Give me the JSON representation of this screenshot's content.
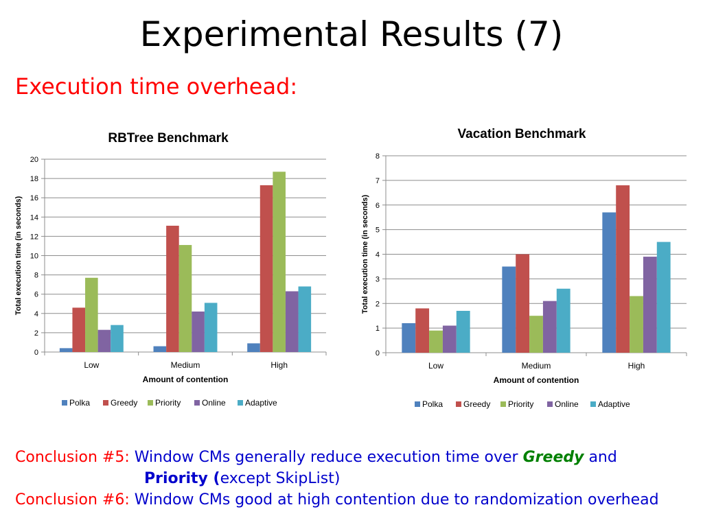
{
  "slide": {
    "title": "Experimental Results (7)",
    "subtitle": "Execution time overhead:"
  },
  "conclusions": {
    "c5_label": "Conclusion #5:",
    "c5_text_a": "Window CMs generally reduce execution time over",
    "c5_greedy": "Greedy",
    "c5_text_b": "and",
    "c5_priority": "Priority (",
    "c5_text_c": "except SkipList)",
    "c6_label": "Conclusion #6:",
    "c6_text": "Window CMs good at high contention due to randomization overhead"
  },
  "colors": {
    "Polka": "#4f81bd",
    "Greedy": "#c0504d",
    "Priority": "#9bbb59",
    "Online": "#8064a2",
    "Adaptive": "#4bacc6",
    "red_text": "#ff0000",
    "blue_text": "#0000cc",
    "green_text": "#008000"
  },
  "chart_data": [
    {
      "type": "bar",
      "title": "RBTree Benchmark",
      "xlabel": "Amount of contention",
      "ylabel": "Total execution time (in seconds)",
      "categories": [
        "Low",
        "Medium",
        "High"
      ],
      "ylim": [
        0,
        20
      ],
      "yticks": [
        0,
        2,
        4,
        6,
        8,
        10,
        12,
        14,
        16,
        18,
        20
      ],
      "grid": true,
      "legend": "bottom",
      "series": [
        {
          "name": "Polka",
          "values": [
            0.4,
            0.6,
            0.9
          ]
        },
        {
          "name": "Greedy",
          "values": [
            4.6,
            13.1,
            17.3
          ]
        },
        {
          "name": "Priority",
          "values": [
            7.7,
            11.1,
            18.7
          ]
        },
        {
          "name": "Online",
          "values": [
            2.3,
            4.2,
            6.3
          ]
        },
        {
          "name": "Adaptive",
          "values": [
            2.8,
            5.1,
            6.8
          ]
        }
      ]
    },
    {
      "type": "bar",
      "title": "Vacation Benchmark",
      "xlabel": "Amount of contention",
      "ylabel": "Total execution time (in seconds)",
      "categories": [
        "Low",
        "Medium",
        "High"
      ],
      "ylim": [
        0,
        8
      ],
      "yticks": [
        0,
        1,
        2,
        3,
        4,
        5,
        6,
        7,
        8
      ],
      "grid": true,
      "legend": "bottom",
      "series": [
        {
          "name": "Polka",
          "values": [
            1.2,
            3.5,
            5.7
          ]
        },
        {
          "name": "Greedy",
          "values": [
            1.8,
            4.0,
            6.8
          ]
        },
        {
          "name": "Priority",
          "values": [
            0.9,
            1.5,
            2.3
          ]
        },
        {
          "name": "Online",
          "values": [
            1.1,
            2.1,
            3.9
          ]
        },
        {
          "name": "Adaptive",
          "values": [
            1.7,
            2.6,
            4.5
          ]
        }
      ]
    }
  ]
}
